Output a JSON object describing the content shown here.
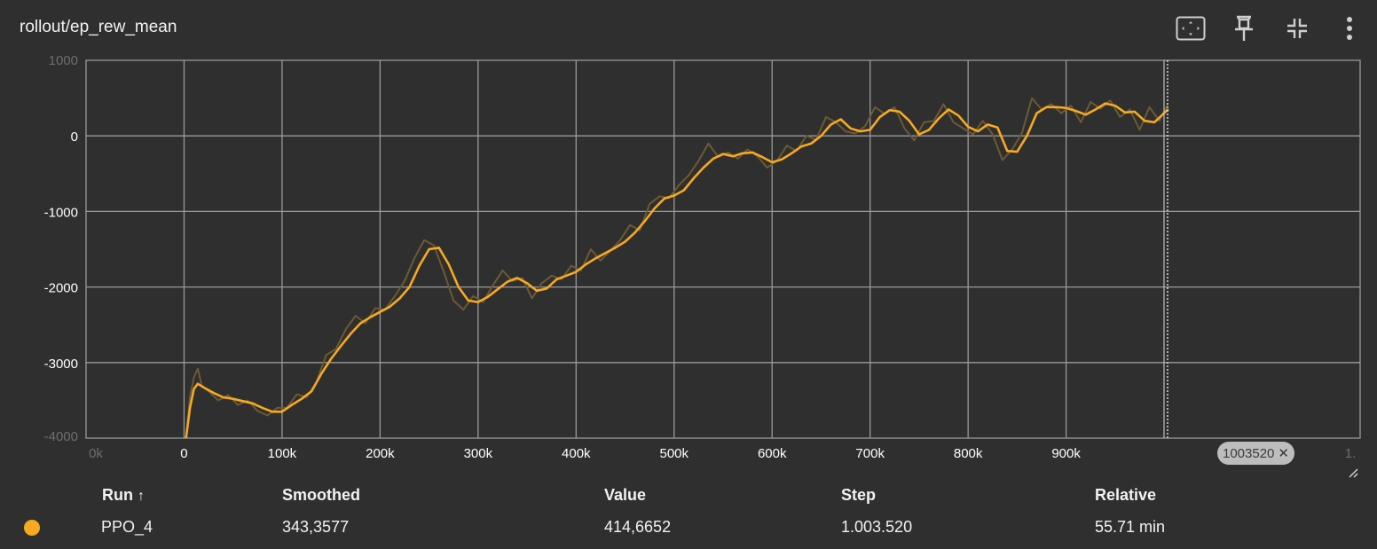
{
  "header": {
    "title": "rollout/ep_rew_mean",
    "icons": [
      "fit-domain-icon",
      "pin-icon",
      "collapse-icon",
      "more-vert-icon"
    ]
  },
  "chart_data": {
    "type": "line",
    "title": "rollout/ep_rew_mean",
    "xlabel": "",
    "ylabel": "",
    "xlim": [
      -100000,
      1200000
    ],
    "ylim": [
      -4000,
      1000
    ],
    "x_ticks": [
      "0",
      "100k",
      "200k",
      "300k",
      "400k",
      "500k",
      "600k",
      "700k",
      "800k",
      "900k"
    ],
    "y_ticks": [
      "0",
      "-1000",
      "-2000",
      "-3000"
    ],
    "clipped_tick_labels": {
      "x_left": "0k",
      "x_right": "1.",
      "y_top": "1000",
      "y_bottom": "-4000"
    },
    "grid": true,
    "colors": {
      "smoothed": "#f7a91f",
      "raw": "#6b5a35",
      "background": "#2f2f2f",
      "grid": "#9a9a9a"
    },
    "series": [
      {
        "name": "PPO_4",
        "style": "smoothed",
        "x": [
          2000,
          6000,
          10000,
          14000,
          20000,
          30000,
          40000,
          50000,
          60000,
          70000,
          80000,
          90000,
          100000,
          110000,
          120000,
          130000,
          140000,
          150000,
          160000,
          170000,
          180000,
          190000,
          200000,
          210000,
          220000,
          230000,
          240000,
          250000,
          260000,
          270000,
          280000,
          290000,
          300000,
          310000,
          320000,
          330000,
          340000,
          350000,
          360000,
          370000,
          380000,
          390000,
          400000,
          410000,
          420000,
          430000,
          440000,
          450000,
          460000,
          470000,
          480000,
          490000,
          500000,
          510000,
          520000,
          530000,
          540000,
          550000,
          560000,
          570000,
          580000,
          590000,
          600000,
          610000,
          620000,
          630000,
          640000,
          650000,
          660000,
          670000,
          680000,
          690000,
          700000,
          710000,
          720000,
          730000,
          740000,
          750000,
          760000,
          770000,
          780000,
          790000,
          800000,
          810000,
          820000,
          830000,
          840000,
          850000,
          860000,
          870000,
          880000,
          890000,
          900000,
          910000,
          920000,
          930000,
          940000,
          950000,
          960000,
          970000,
          980000,
          990000,
          1000000,
          1003520
        ],
        "y": [
          -4000,
          -3600,
          -3350,
          -3280,
          -3330,
          -3400,
          -3460,
          -3480,
          -3510,
          -3540,
          -3600,
          -3650,
          -3650,
          -3560,
          -3480,
          -3380,
          -3150,
          -2950,
          -2780,
          -2620,
          -2480,
          -2400,
          -2330,
          -2260,
          -2150,
          -2000,
          -1720,
          -1500,
          -1480,
          -1700,
          -2000,
          -2180,
          -2200,
          -2130,
          -2030,
          -1930,
          -1880,
          -1950,
          -2050,
          -2020,
          -1900,
          -1850,
          -1800,
          -1700,
          -1620,
          -1550,
          -1480,
          -1400,
          -1280,
          -1130,
          -960,
          -830,
          -790,
          -720,
          -560,
          -420,
          -300,
          -240,
          -270,
          -230,
          -220,
          -280,
          -350,
          -310,
          -230,
          -140,
          -100,
          0,
          150,
          220,
          100,
          60,
          80,
          250,
          340,
          320,
          200,
          20,
          80,
          230,
          350,
          270,
          120,
          60,
          150,
          110,
          -200,
          -210,
          0,
          300,
          380,
          380,
          370,
          330,
          280,
          350,
          430,
          400,
          310,
          320,
          200,
          180,
          300,
          343.3577
        ]
      },
      {
        "name": "PPO_4",
        "style": "raw",
        "x": [
          2000,
          6000,
          10000,
          14000,
          18000,
          25000,
          35000,
          45000,
          55000,
          65000,
          75000,
          85000,
          95000,
          105000,
          115000,
          125000,
          135000,
          145000,
          155000,
          165000,
          175000,
          185000,
          195000,
          205000,
          215000,
          225000,
          235000,
          245000,
          255000,
          265000,
          275000,
          285000,
          295000,
          305000,
          315000,
          325000,
          335000,
          345000,
          355000,
          365000,
          375000,
          385000,
          395000,
          405000,
          415000,
          425000,
          435000,
          445000,
          455000,
          465000,
          475000,
          485000,
          495000,
          505000,
          515000,
          525000,
          535000,
          545000,
          555000,
          565000,
          575000,
          585000,
          595000,
          605000,
          615000,
          625000,
          635000,
          645000,
          655000,
          665000,
          675000,
          685000,
          695000,
          705000,
          715000,
          725000,
          735000,
          745000,
          755000,
          765000,
          775000,
          785000,
          795000,
          805000,
          815000,
          825000,
          835000,
          845000,
          855000,
          865000,
          875000,
          885000,
          895000,
          905000,
          915000,
          925000,
          935000,
          945000,
          955000,
          965000,
          975000,
          985000,
          995000,
          1003520
        ],
        "y": [
          -4000,
          -3450,
          -3200,
          -3080,
          -3300,
          -3380,
          -3500,
          -3430,
          -3560,
          -3500,
          -3640,
          -3700,
          -3600,
          -3600,
          -3420,
          -3460,
          -3260,
          -2900,
          -2820,
          -2560,
          -2380,
          -2480,
          -2280,
          -2300,
          -2120,
          -1920,
          -1620,
          -1380,
          -1450,
          -1800,
          -2180,
          -2300,
          -2120,
          -2200,
          -1980,
          -1780,
          -1920,
          -1880,
          -2150,
          -1950,
          -1850,
          -1900,
          -1720,
          -1780,
          -1500,
          -1650,
          -1520,
          -1380,
          -1180,
          -1250,
          -900,
          -800,
          -820,
          -650,
          -520,
          -330,
          -100,
          -280,
          -220,
          -300,
          -180,
          -270,
          -420,
          -330,
          -130,
          -200,
          0,
          -50,
          250,
          180,
          60,
          30,
          130,
          380,
          290,
          380,
          100,
          -60,
          180,
          200,
          420,
          180,
          100,
          20,
          200,
          20,
          -320,
          -180,
          40,
          500,
          350,
          420,
          300,
          400,
          180,
          450,
          360,
          470,
          250,
          350,
          80,
          380,
          200,
          414.6652
        ]
      }
    ],
    "cursor_step": 1003520
  },
  "cursor": {
    "step_chip": "1003520",
    "close": "✕"
  },
  "table": {
    "headers": {
      "run": "Run",
      "sort_arrow": "↑",
      "smoothed": "Smoothed",
      "value": "Value",
      "step": "Step",
      "relative": "Relative"
    },
    "rows": [
      {
        "color": "#f7a91f",
        "run": "PPO_4",
        "smoothed": "343,3577",
        "value": "414,6652",
        "step": "1.003.520",
        "relative": "55.71 min"
      }
    ]
  }
}
